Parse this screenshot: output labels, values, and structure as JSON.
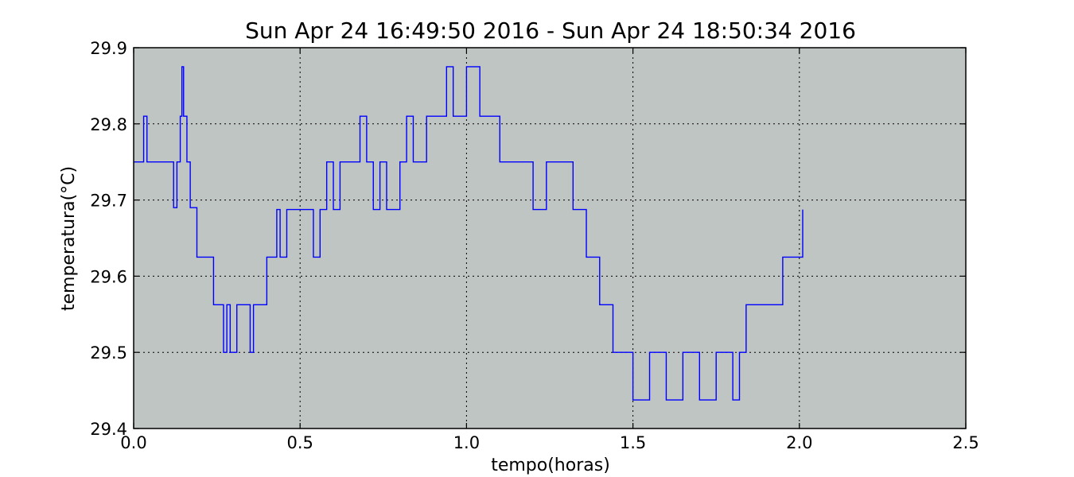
{
  "chart_data": {
    "type": "line",
    "title": "Sun Apr 24 16:49:50 2016 - Sun Apr 24 18:50:34 2016",
    "xlabel": "tempo(horas)",
    "ylabel": "temperatura(°C)",
    "xlim": [
      0.0,
      2.5
    ],
    "ylim": [
      29.4,
      29.9
    ],
    "xticks": [
      "0.0",
      "0.5",
      "1.0",
      "1.5",
      "2.0",
      "2.5"
    ],
    "yticks": [
      "29.4",
      "29.5",
      "29.6",
      "29.7",
      "29.8",
      "29.9"
    ],
    "grid": true,
    "background": "#bfc5c3",
    "line_color": "#0000ff",
    "series": [
      {
        "x": [
          0.0,
          0.03,
          0.04,
          0.12,
          0.13,
          0.14,
          0.145,
          0.15,
          0.16,
          0.17,
          0.18,
          0.19,
          0.2,
          0.21,
          0.22,
          0.24,
          0.25,
          0.27,
          0.28,
          0.29,
          0.31,
          0.33,
          0.35,
          0.36,
          0.37,
          0.39,
          0.4,
          0.42,
          0.43,
          0.44,
          0.46,
          0.48,
          0.5,
          0.54,
          0.56,
          0.58,
          0.6,
          0.62,
          0.64,
          0.66,
          0.68,
          0.7,
          0.72,
          0.74,
          0.76,
          0.8,
          0.82,
          0.84,
          0.88,
          0.92,
          0.94,
          0.96,
          1.0,
          1.04,
          1.06,
          1.08,
          1.1,
          1.14,
          1.16,
          1.2,
          1.24,
          1.3,
          1.32,
          1.34,
          1.36,
          1.38,
          1.4,
          1.42,
          1.44,
          1.46,
          1.48,
          1.5,
          1.55,
          1.6,
          1.65,
          1.7,
          1.75,
          1.8,
          1.82,
          1.84,
          1.88,
          1.93,
          1.95,
          1.98,
          2.0,
          2.01
        ],
        "y": [
          29.75,
          29.81,
          29.75,
          29.69,
          29.75,
          29.81,
          29.875,
          29.81,
          29.75,
          29.69,
          29.69,
          29.625,
          29.625,
          29.625,
          29.625,
          29.5625,
          29.5625,
          29.5,
          29.5625,
          29.5,
          29.5625,
          29.5625,
          29.5,
          29.5625,
          29.5625,
          29.5625,
          29.625,
          29.625,
          29.6875,
          29.625,
          29.6875,
          29.6875,
          29.6875,
          29.625,
          29.6875,
          29.75,
          29.6875,
          29.75,
          29.75,
          29.75,
          29.81,
          29.75,
          29.6875,
          29.75,
          29.6875,
          29.75,
          29.81,
          29.75,
          29.81,
          29.81,
          29.875,
          29.81,
          29.875,
          29.81,
          29.81,
          29.81,
          29.75,
          29.75,
          29.75,
          29.6875,
          29.75,
          29.75,
          29.6875,
          29.6875,
          29.625,
          29.625,
          29.5625,
          29.5625,
          29.5,
          29.5,
          29.5,
          29.4375,
          29.5,
          29.4375,
          29.5,
          29.4375,
          29.5,
          29.4375,
          29.5,
          29.5625,
          29.5625,
          29.5625,
          29.625,
          29.625,
          29.625,
          29.6875
        ]
      }
    ]
  }
}
